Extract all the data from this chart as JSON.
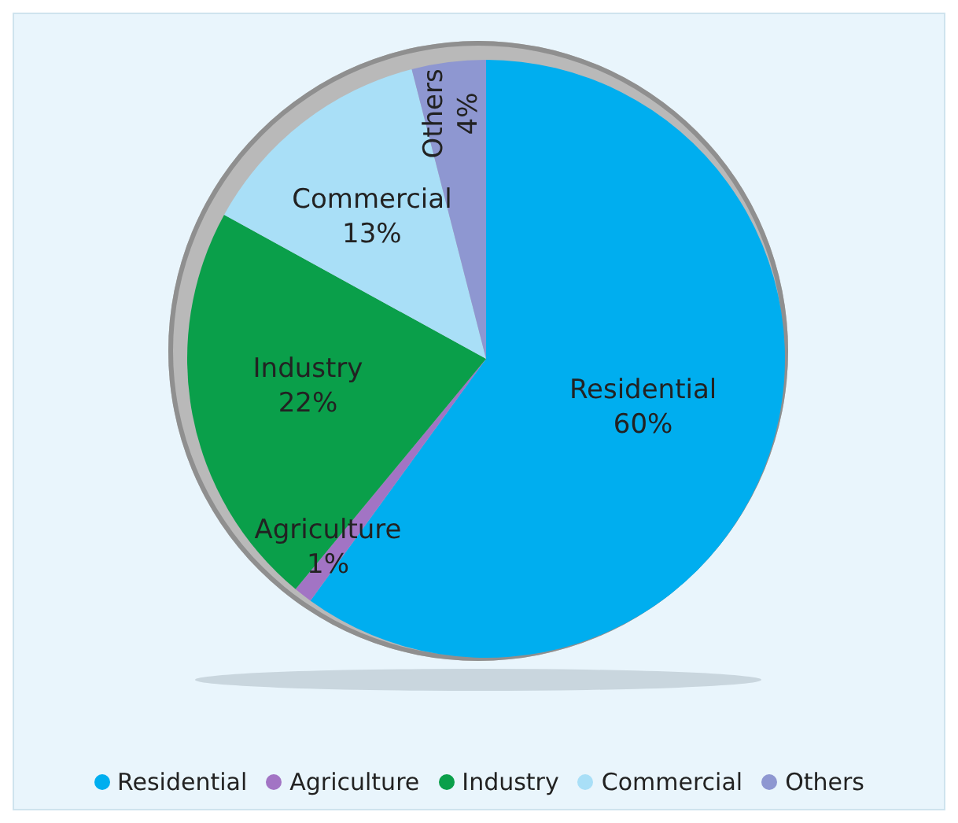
{
  "chart_data": {
    "type": "pie",
    "categories": [
      "Residential",
      "Agriculture",
      "Industry",
      "Commercial",
      "Others"
    ],
    "values": [
      60,
      1,
      22,
      13,
      4
    ],
    "value_labels": [
      "60%",
      "1%",
      "22%",
      "13%",
      "4%"
    ],
    "colors": [
      "#00aeef",
      "#a274c4",
      "#0a9f4a",
      "#a9dff7",
      "#8e97d1"
    ],
    "legend": "bottom"
  }
}
